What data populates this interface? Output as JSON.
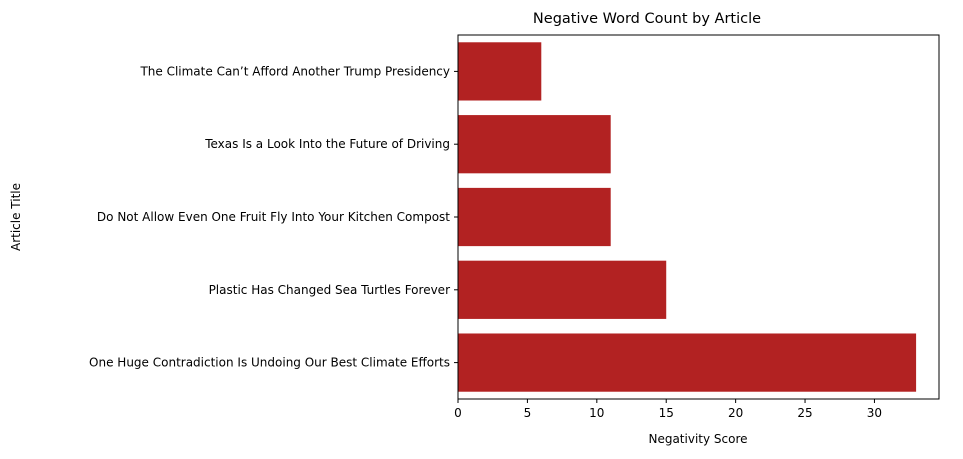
{
  "chart_data": {
    "type": "bar",
    "orientation": "horizontal",
    "title": "Negative Word Count by Article",
    "xlabel": "Negativity Score",
    "ylabel": "Article Title",
    "categories": [
      "One Huge Contradiction Is Undoing Our Best Climate Efforts",
      "Plastic Has Changed Sea Turtles Forever",
      "Do Not Allow Even One Fruit Fly Into Your Kitchen Compost",
      "Texas Is a Look Into the Future of Driving",
      "The Climate Can’t Afford Another Trump Presidency"
    ],
    "values": [
      33,
      15,
      11,
      11,
      6
    ],
    "xlim": [
      0,
      34.65
    ],
    "xticks": [
      0,
      5,
      10,
      15,
      20,
      25,
      30
    ],
    "grid": false,
    "bar_color": "#b22222"
  }
}
